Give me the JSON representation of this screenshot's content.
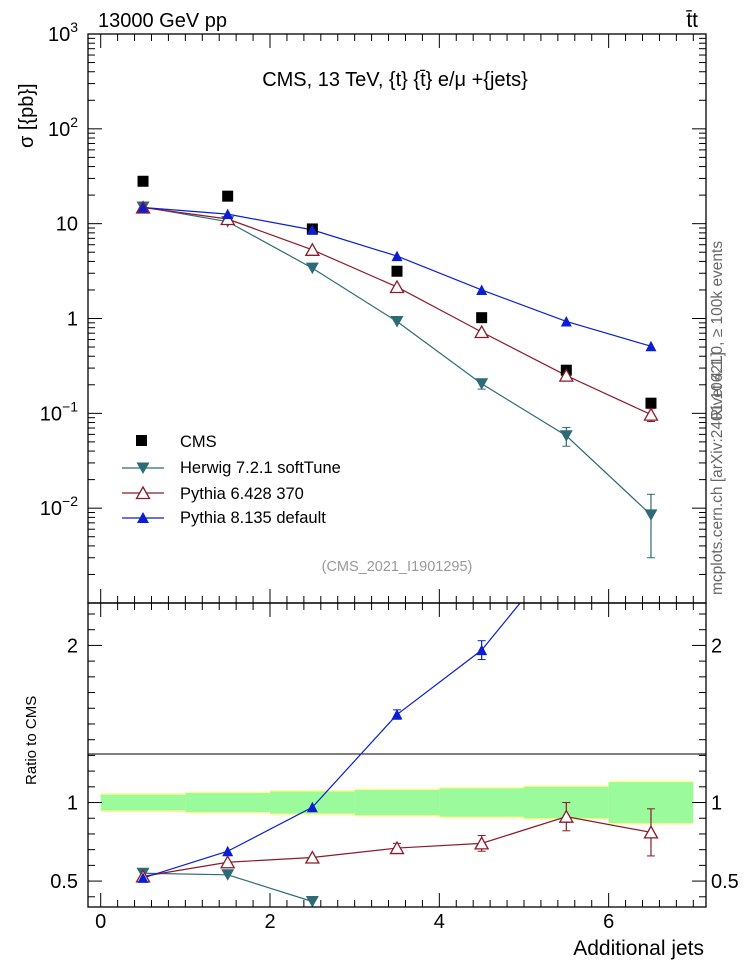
{
  "header": {
    "energy_label": "13000 GeV pp",
    "process_label": "t̄t"
  },
  "side_labels": {
    "rivet": "Rivet 4.1.0, ≥ 100k events",
    "mcplots": "mcplots.cern.ch [arXiv:2401.10621]"
  },
  "chart_data": [
    {
      "type": "scatter",
      "panel": "main",
      "title": "CMS, 13 TeV, {t} {t̄} e/μ +{jets}",
      "ylabel": "σ [{pb}]",
      "xlabel": "",
      "yscale": "log",
      "ylim": [
        0.001,
        1000
      ],
      "xlim": [
        -0.15,
        7.15
      ],
      "yticks": [
        {
          "value": 1000,
          "label": "10",
          "sup": "3"
        },
        {
          "value": 100,
          "label": "10",
          "sup": "2"
        },
        {
          "value": 10,
          "label": "10",
          "sup": ""
        },
        {
          "value": 1,
          "label": "1",
          "sup": ""
        },
        {
          "value": 0.1,
          "label": "10",
          "sup": "−1"
        },
        {
          "value": 0.01,
          "label": "10",
          "sup": "−2"
        }
      ],
      "watermark": "(CMS_2021_I1901295)",
      "legend_position": "bottom-left",
      "series": [
        {
          "name": "CMS",
          "style": "data",
          "color": "#000000",
          "marker": "square",
          "x": [
            0.5,
            1.5,
            2.5,
            3.5,
            4.5,
            5.5,
            6.5
          ],
          "y": [
            28,
            19.5,
            8.8,
            3.15,
            1.02,
            0.285,
            0.128
          ]
        },
        {
          "name": "Herwig 7.2.1 softTune",
          "style": "line",
          "color": "#2d6b77",
          "marker": "triangle-down",
          "x": [
            0.5,
            1.5,
            2.5,
            3.5,
            4.5,
            5.5,
            6.5
          ],
          "y": [
            15,
            10.5,
            3.4,
            0.93,
            0.205,
            0.058,
            0.0085
          ],
          "err": [
            0,
            0,
            0,
            0,
            0.025,
            0.013,
            0.0055
          ]
        },
        {
          "name": "Pythia 6.428 370",
          "style": "line",
          "color": "#8b1a2a",
          "marker": "triangle-up-open",
          "x": [
            0.5,
            1.5,
            2.5,
            3.5,
            4.5,
            5.5,
            6.5
          ],
          "y": [
            14.8,
            11.2,
            5.3,
            2.15,
            0.72,
            0.25,
            0.097
          ],
          "err": [
            0,
            0,
            0,
            0,
            0,
            0,
            0.015
          ]
        },
        {
          "name": "Pythia 8.135 default",
          "style": "line",
          "color": "#0b1fd0",
          "marker": "triangle-up",
          "x": [
            0.5,
            1.5,
            2.5,
            3.5,
            4.5,
            5.5,
            6.5
          ],
          "y": [
            14.8,
            12.6,
            8.6,
            4.55,
            2.0,
            0.93,
            0.51
          ]
        }
      ]
    },
    {
      "type": "line",
      "panel": "ratio",
      "ylabel": "Ratio to CMS",
      "xlabel": "Additional jets",
      "ylim": [
        0.335,
        2.27
      ],
      "xlim": [
        -0.15,
        7.15
      ],
      "xticks": [
        0,
        2,
        4,
        6
      ],
      "yticks": [
        0.5,
        1,
        2
      ],
      "bands": {
        "edges": [
          0,
          1,
          2,
          3,
          4,
          5,
          6,
          7
        ],
        "inner": [
          0.05,
          0.06,
          0.07,
          0.08,
          0.09,
          0.1,
          0.13
        ],
        "outer": [
          0.06,
          0.07,
          0.08,
          0.09,
          0.1,
          0.11,
          0.14
        ],
        "inner_color": "#9bfa9b",
        "outer_color": "#fffb96"
      },
      "series": [
        {
          "name": "Herwig 7.2.1 softTune",
          "color": "#2d6b77",
          "marker": "triangle-down",
          "x": [
            0.5,
            1.5,
            2.5
          ],
          "y": [
            0.55,
            0.54,
            0.37
          ]
        },
        {
          "name": "Pythia 6.428 370",
          "color": "#8b1a2a",
          "marker": "triangle-up-open",
          "x": [
            0.5,
            1.5,
            2.5,
            3.5,
            4.5,
            5.5,
            6.5
          ],
          "y": [
            0.53,
            0.62,
            0.65,
            0.71,
            0.74,
            0.91,
            0.81
          ],
          "err": [
            0,
            0,
            0,
            0.03,
            0.05,
            0.09,
            0.15
          ]
        },
        {
          "name": "Pythia 8.135 default",
          "color": "#0b1fd0",
          "marker": "triangle-up",
          "x": [
            0.5,
            1.5,
            2.5,
            3.5,
            4.5,
            5.0
          ],
          "y": [
            0.52,
            0.69,
            0.97,
            1.56,
            1.97,
            2.3
          ],
          "err": [
            0,
            0,
            0,
            0.03,
            0.06,
            0
          ]
        }
      ]
    }
  ]
}
